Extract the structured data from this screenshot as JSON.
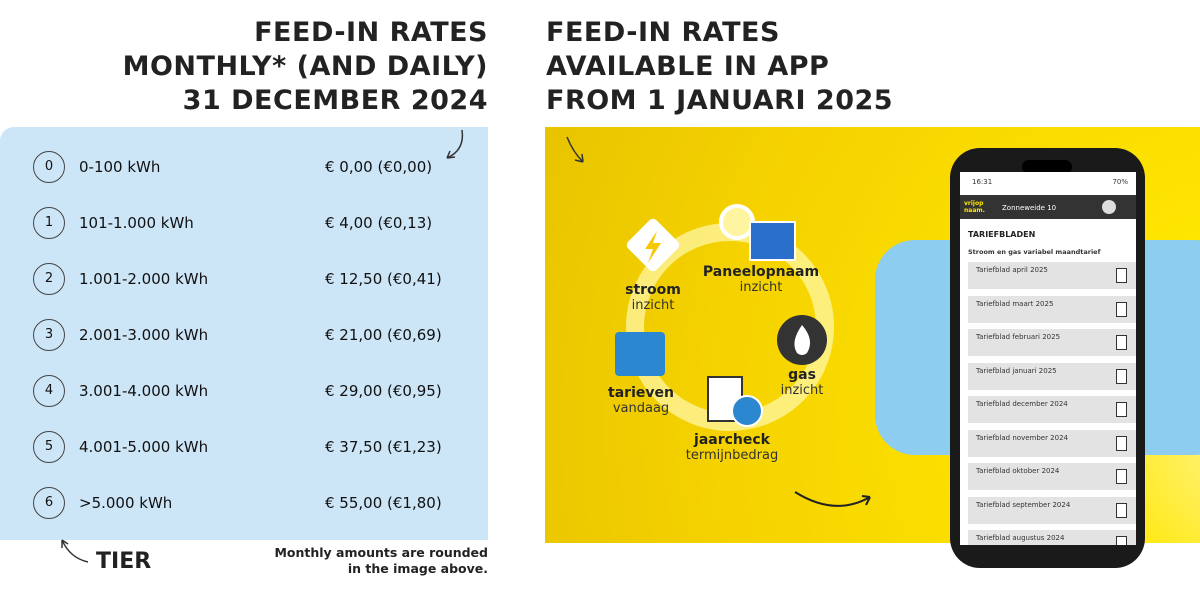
{
  "left": {
    "title_lines": [
      "FEED-IN RATES",
      "MONTHLY* (AND DAILY)",
      "31 DECEMBER 2024"
    ],
    "tiers": [
      {
        "number": "0",
        "range": "0-100 kWh",
        "rate": "€ 0,00 (€0,00)"
      },
      {
        "number": "1",
        "range": "101-1.000 kWh",
        "rate": "€ 4,00 (€0,13)"
      },
      {
        "number": "2",
        "range": "1.001-2.000 kWh",
        "rate": "€ 12,50 (€0,41)"
      },
      {
        "number": "3",
        "range": "2.001-3.000 kWh",
        "rate": "€ 21,00 (€0,69)"
      },
      {
        "number": "4",
        "range": "3.001-4.000 kWh",
        "rate": "€ 29,00 (€0,95)"
      },
      {
        "number": "5",
        "range": "4.001-5.000 kWh",
        "rate": "€ 37,50 (€1,23)"
      },
      {
        "number": "6",
        "range": ">5.000 kWh",
        "rate": "€ 55,00 (€1,80)"
      }
    ],
    "tier_label": "TIER",
    "footnote_lines": [
      "Monthly amounts are rounded",
      "in the image above."
    ]
  },
  "right": {
    "title_lines": [
      "FEED-IN RATES",
      "AVAILABLE IN APP",
      "FROM 1 JANUARI 2025"
    ],
    "features": [
      {
        "name": "stroom",
        "sub": "inzicht"
      },
      {
        "name": "Paneelopnaam",
        "sub": "inzicht"
      },
      {
        "name": "gas",
        "sub": "inzicht"
      },
      {
        "name": "tarieven",
        "sub": "vandaag"
      },
      {
        "name": "jaarcheck",
        "sub": "termijnbedrag"
      }
    ],
    "phone": {
      "time": "16:31",
      "battery": "70%",
      "brand_lines": [
        "vrijop",
        "naam."
      ],
      "address": "Zonneweide 10",
      "heading": "TARIEFBLADEN",
      "subheading": "Stroom en gas variabel maandtarief",
      "items": [
        "Tariefblad april 2025",
        "Tariefblad maart 2025",
        "Tariefblad februari 2025",
        "Tariefblad januari 2025",
        "Tariefblad december 2024",
        "Tariefblad november 2024",
        "Tariefblad oktober 2024",
        "Tariefblad september 2024",
        "Tariefblad augustus 2024"
      ]
    }
  }
}
